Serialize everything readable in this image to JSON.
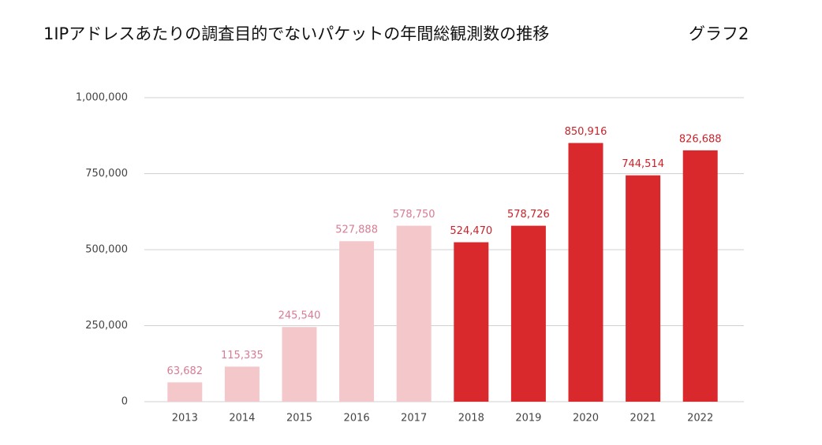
{
  "chart_data": {
    "type": "bar",
    "title": "1IPアドレスあたりの調査目的でないパケットの年間総観測数の推移",
    "figure_label": "グラフ2",
    "categories": [
      "2013",
      "2014",
      "2015",
      "2016",
      "2017",
      "2018",
      "2019",
      "2020",
      "2021",
      "2022"
    ],
    "values": [
      63682,
      115335,
      245540,
      527888,
      578750,
      524470,
      578726,
      850916,
      744514,
      826688
    ],
    "value_labels": [
      "63,682",
      "115,335",
      "245,540",
      "527,888",
      "578,750",
      "524,470",
      "578,726",
      "850,916",
      "744,514",
      "826,688"
    ],
    "colors": [
      "#f4c8ca",
      "#f4c8ca",
      "#f4c8ca",
      "#f4c8ca",
      "#f4c8ca",
      "#d9292c",
      "#d9292c",
      "#d9292c",
      "#d9292c",
      "#d9292c"
    ],
    "label_colors": [
      "#d97b94",
      "#d97b94",
      "#d97b94",
      "#d97b94",
      "#d97b94",
      "#c8232a",
      "#c8232a",
      "#c8232a",
      "#c8232a",
      "#c8232a"
    ],
    "ylim": [
      0,
      1000000
    ],
    "yticks": [
      0,
      {
        "value": 250000,
        "label": "250,000"
      },
      {
        "value": 500000,
        "label": "500,000"
      },
      {
        "value": 750000,
        "label": "750,000"
      },
      {
        "value": 1000000,
        "label": "1,000,000"
      }
    ],
    "grid": true
  }
}
